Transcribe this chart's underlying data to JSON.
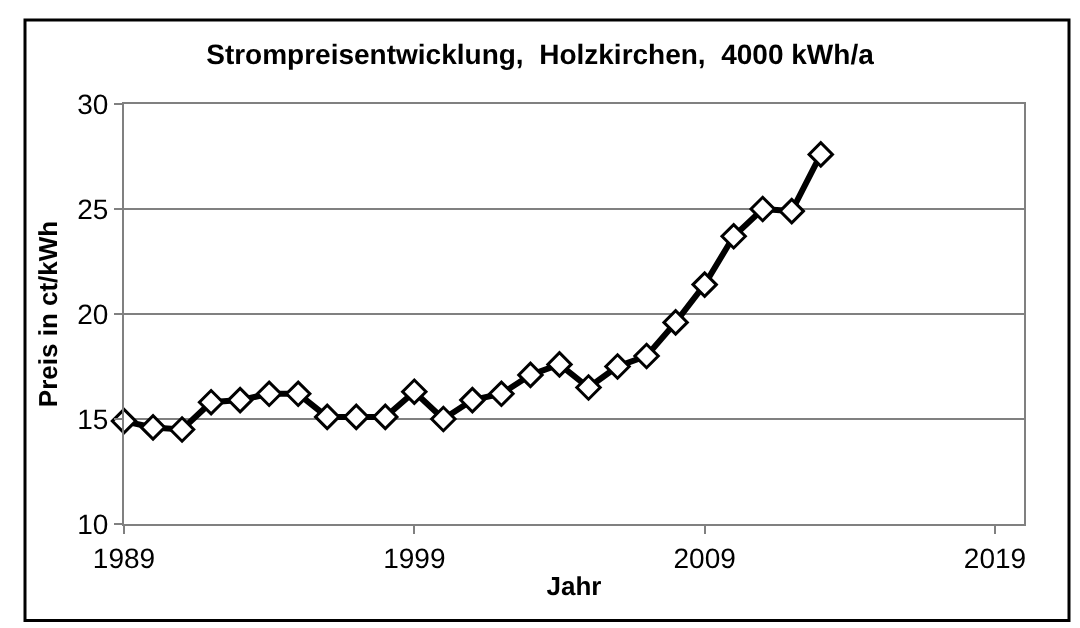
{
  "chart_data": {
    "type": "line",
    "title": "Strompreisentwicklung,  Holzkirchen,  4000 kWh/a",
    "xlabel": "Jahr",
    "ylabel": "Preis in ct/kWh",
    "x": [
      1989,
      1990,
      1991,
      1992,
      1993,
      1994,
      1995,
      1996,
      1997,
      1998,
      1999,
      2000,
      2001,
      2002,
      2003,
      2004,
      2005,
      2006,
      2007,
      2008,
      2009,
      2010,
      2011,
      2012,
      2013
    ],
    "series": [
      {
        "color": "#000000",
        "values": [
          14.9,
          14.6,
          14.5,
          15.8,
          15.9,
          16.2,
          16.2,
          15.1,
          15.1,
          15.1,
          16.3,
          15.0,
          15.9,
          16.2,
          17.1,
          17.6,
          16.5,
          17.5,
          18.0,
          19.6,
          21.4,
          23.7,
          25.0,
          24.9,
          27.6
        ]
      }
    ],
    "xlim": [
      1989,
      2020
    ],
    "xticks": [
      1989,
      1999,
      2009,
      2019
    ],
    "ylim": [
      10,
      30
    ],
    "yticks": [
      10,
      15,
      20,
      25,
      30
    ],
    "grid": "y",
    "marker": "diamond",
    "line_style": "solid"
  }
}
